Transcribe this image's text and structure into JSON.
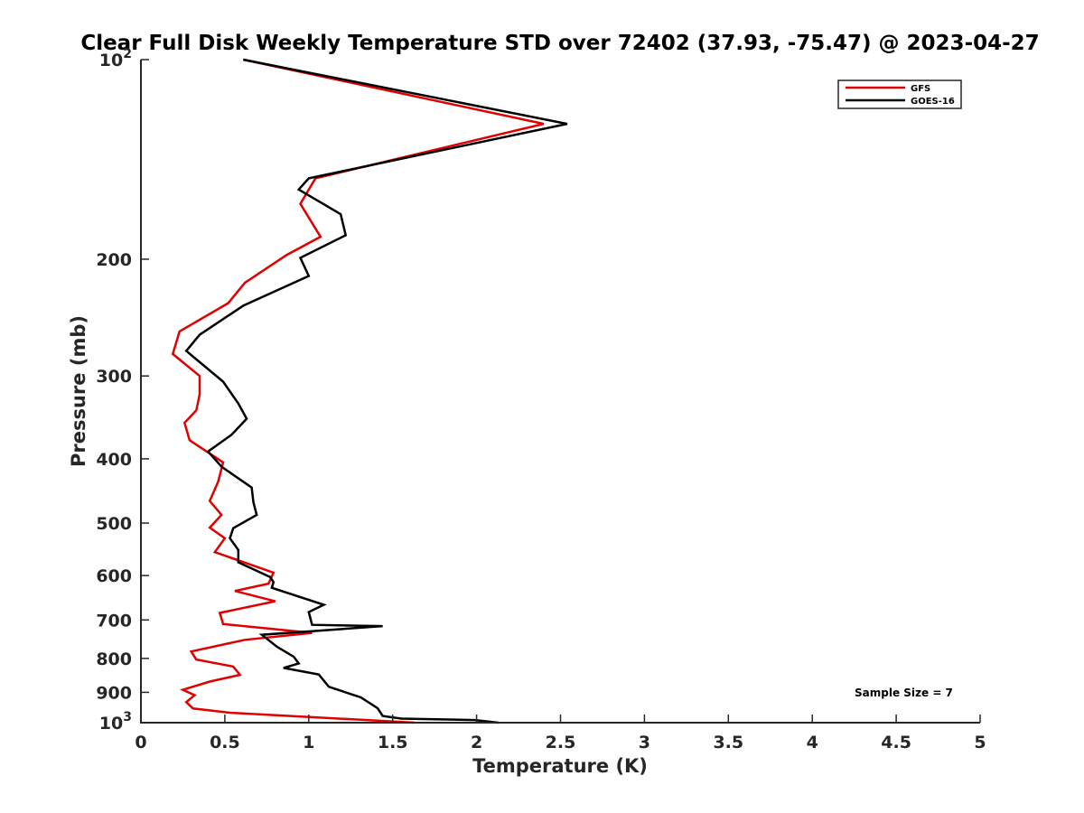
{
  "chart_data": {
    "type": "line",
    "title": "Clear Full Disk Weekly Temperature STD over 72402 (37.93, -75.47) @ 2023-04-27",
    "xlabel": "Temperature (K)",
    "ylabel": "Pressure (mb)",
    "xlim": [
      0,
      5
    ],
    "ylim": [
      100,
      1000
    ],
    "yscale": "log",
    "y_reversed": true,
    "x_ticks": [
      0,
      0.5,
      1,
      1.5,
      2,
      2.5,
      3,
      3.5,
      4,
      4.5,
      5
    ],
    "x_tick_labels": [
      "0",
      "0.5",
      "1",
      "1.5",
      "2",
      "2.5",
      "3",
      "3.5",
      "4",
      "4.5",
      "5"
    ],
    "y_ticks": [
      100,
      200,
      300,
      400,
      500,
      600,
      700,
      800,
      900,
      1000
    ],
    "y_tick_labels": [
      {
        "base": "10",
        "exp": "2"
      },
      {
        "base": "200",
        "exp": ""
      },
      {
        "base": "300",
        "exp": ""
      },
      {
        "base": "400",
        "exp": ""
      },
      {
        "base": "500",
        "exp": ""
      },
      {
        "base": "600",
        "exp": ""
      },
      {
        "base": "700",
        "exp": ""
      },
      {
        "base": "800",
        "exp": ""
      },
      {
        "base": "900",
        "exp": ""
      },
      {
        "base": "10",
        "exp": "3"
      }
    ],
    "grid": false,
    "legend_position": "top-right",
    "annotation": "Sample Size = 7",
    "series": [
      {
        "name": "GFS",
        "color": "#e00000",
        "points": [
          [
            0.61,
            100
          ],
          [
            2.4,
            125
          ],
          [
            1.04,
            151
          ],
          [
            0.95,
            165
          ],
          [
            1.07,
            185
          ],
          [
            0.87,
            197
          ],
          [
            0.62,
            217
          ],
          [
            0.52,
            233
          ],
          [
            0.23,
            257
          ],
          [
            0.19,
            278
          ],
          [
            0.35,
            300
          ],
          [
            0.35,
            320
          ],
          [
            0.33,
            338
          ],
          [
            0.26,
            353
          ],
          [
            0.29,
            375
          ],
          [
            0.49,
            405
          ],
          [
            0.46,
            433
          ],
          [
            0.41,
            463
          ],
          [
            0.48,
            486
          ],
          [
            0.41,
            508
          ],
          [
            0.5,
            527
          ],
          [
            0.44,
            553
          ],
          [
            0.79,
            594
          ],
          [
            0.76,
            617
          ],
          [
            0.56,
            633
          ],
          [
            0.8,
            656
          ],
          [
            0.47,
            683
          ],
          [
            0.49,
            710
          ],
          [
            1.02,
            732
          ],
          [
            0.62,
            750
          ],
          [
            0.3,
            781
          ],
          [
            0.33,
            803
          ],
          [
            0.55,
            823
          ],
          [
            0.59,
            847
          ],
          [
            0.41,
            867
          ],
          [
            0.25,
            892
          ],
          [
            0.32,
            909
          ],
          [
            0.27,
            931
          ],
          [
            0.31,
            952
          ],
          [
            0.53,
            966
          ],
          [
            1.63,
            1000
          ]
        ]
      },
      {
        "name": "GOES-16",
        "color": "#000000",
        "points": [
          [
            0.61,
            100
          ],
          [
            2.54,
            125
          ],
          [
            1.0,
            151
          ],
          [
            0.94,
            157
          ],
          [
            1.19,
            171
          ],
          [
            1.22,
            184
          ],
          [
            0.95,
            199
          ],
          [
            1.0,
            212
          ],
          [
            0.61,
            235
          ],
          [
            0.35,
            260
          ],
          [
            0.27,
            275
          ],
          [
            0.49,
            306
          ],
          [
            0.58,
            330
          ],
          [
            0.63,
            348
          ],
          [
            0.54,
            368
          ],
          [
            0.4,
            390
          ],
          [
            0.48,
            411
          ],
          [
            0.66,
            442
          ],
          [
            0.67,
            465
          ],
          [
            0.69,
            486
          ],
          [
            0.55,
            509
          ],
          [
            0.53,
            527
          ],
          [
            0.58,
            549
          ],
          [
            0.58,
            573
          ],
          [
            0.77,
            603
          ],
          [
            0.79,
            614
          ],
          [
            0.78,
            626
          ],
          [
            1.09,
            664
          ],
          [
            1.0,
            681
          ],
          [
            1.02,
            712
          ],
          [
            1.44,
            715
          ],
          [
            0.72,
            737
          ],
          [
            0.81,
            768
          ],
          [
            0.91,
            795
          ],
          [
            0.94,
            814
          ],
          [
            0.85,
            827
          ],
          [
            1.06,
            846
          ],
          [
            1.12,
            883
          ],
          [
            1.31,
            916
          ],
          [
            1.41,
            951
          ],
          [
            1.43,
            968
          ],
          [
            1.44,
            977
          ],
          [
            1.55,
            986
          ],
          [
            1.99,
            991
          ],
          [
            2.13,
            1000
          ]
        ]
      }
    ]
  }
}
